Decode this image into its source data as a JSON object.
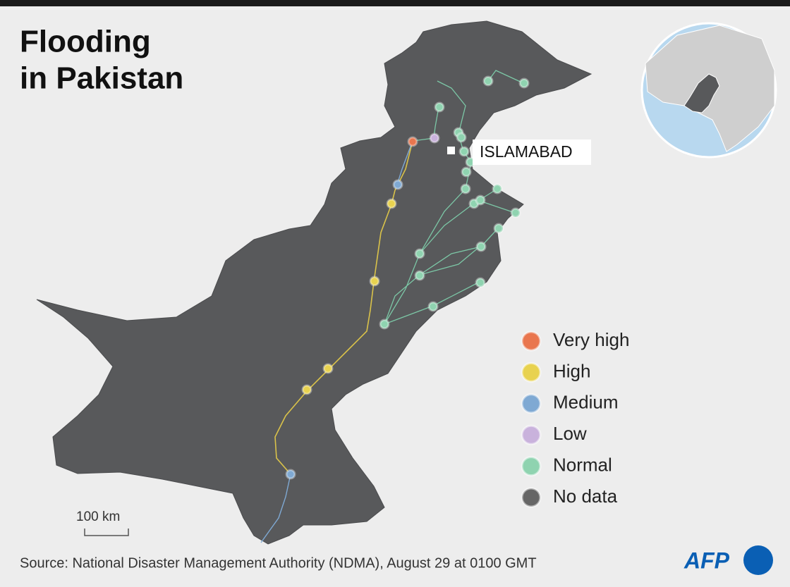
{
  "title_lines": [
    "Flooding",
    "in Pakistan"
  ],
  "city": "ISLAMABAD",
  "legend": [
    {
      "name": "Very high",
      "color": "#e9764e"
    },
    {
      "name": "High",
      "color": "#e8d24f"
    },
    {
      "name": "Medium",
      "color": "#7fa9d3"
    },
    {
      "name": "Low",
      "color": "#c9b2dc"
    },
    {
      "name": "Normal",
      "color": "#8fd3b0"
    },
    {
      "name": "No data",
      "color": "#666666"
    }
  ],
  "scale": "100 km",
  "source": "Source: National Disaster Management Authority (NDMA), August 29 at 0100 GMT",
  "logo": "AFP"
}
